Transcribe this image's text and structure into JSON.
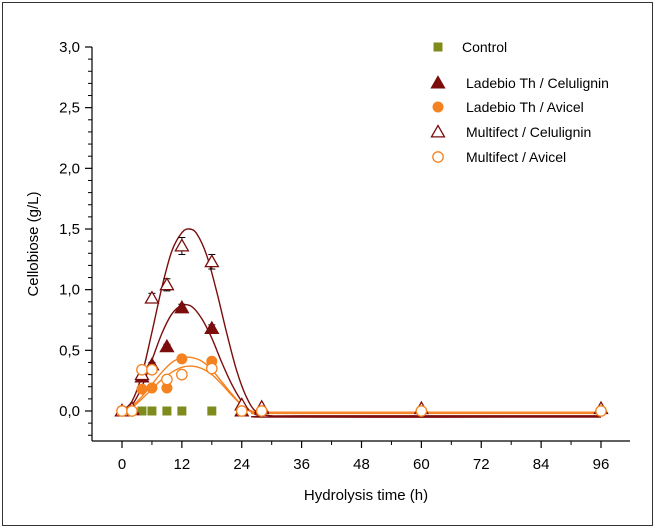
{
  "chart_data": {
    "type": "scatter",
    "title": "",
    "xlabel": "Hydrolysis time (h)",
    "ylabel": "Cellobiose (g/L)",
    "xlim": [
      -5,
      100
    ],
    "ylim": [
      -0.25,
      3.0
    ],
    "xticks": [
      0,
      12,
      24,
      36,
      48,
      60,
      72,
      84,
      96
    ],
    "xtick_labels": [
      "0",
      "12",
      "24",
      "36",
      "48",
      "60",
      "72",
      "84",
      "96"
    ],
    "yticks": [
      0.0,
      0.5,
      1.0,
      1.5,
      2.0,
      2.5,
      3.0
    ],
    "ytick_labels": [
      "0,0",
      "0,5",
      "1,0",
      "1,5",
      "2,0",
      "2,5",
      "3,0"
    ],
    "legend_position": "top-right",
    "grid": false,
    "series": [
      {
        "name": "Control",
        "marker": "square-filled",
        "color": "#7f8c1d",
        "points": [
          {
            "x": 0,
            "y": 0.0
          },
          {
            "x": 4,
            "y": 0.0
          },
          {
            "x": 6,
            "y": 0.0
          },
          {
            "x": 9,
            "y": 0.0
          },
          {
            "x": 12,
            "y": 0.0
          },
          {
            "x": 18,
            "y": 0.0
          }
        ]
      },
      {
        "name": "Ladebio Th / Celulignin",
        "marker": "triangle-filled",
        "color": "#7b0d0d",
        "points": [
          {
            "x": 0,
            "y": 0.0
          },
          {
            "x": 2,
            "y": 0.01
          },
          {
            "x": 4,
            "y": 0.28
          },
          {
            "x": 6,
            "y": 0.38
          },
          {
            "x": 9,
            "y": 0.53
          },
          {
            "x": 12,
            "y": 0.85
          },
          {
            "x": 18,
            "y": 0.68
          },
          {
            "x": 24,
            "y": 0.0
          },
          {
            "x": 28,
            "y": 0.02
          }
        ],
        "errors": [
          0,
          0,
          0.02,
          0.02,
          0.02,
          0.03,
          0.03,
          0,
          0
        ],
        "fit": [
          {
            "x": 0,
            "y": 0.0
          },
          {
            "x": 2,
            "y": 0.05
          },
          {
            "x": 4,
            "y": 0.2
          },
          {
            "x": 6,
            "y": 0.42
          },
          {
            "x": 8,
            "y": 0.64
          },
          {
            "x": 10,
            "y": 0.8
          },
          {
            "x": 12,
            "y": 0.87
          },
          {
            "x": 14,
            "y": 0.86
          },
          {
            "x": 16,
            "y": 0.76
          },
          {
            "x": 18,
            "y": 0.6
          },
          {
            "x": 20,
            "y": 0.4
          },
          {
            "x": 22,
            "y": 0.22
          },
          {
            "x": 24,
            "y": 0.08
          },
          {
            "x": 26,
            "y": -0.01
          },
          {
            "x": 28,
            "y": -0.04
          },
          {
            "x": 32,
            "y": -0.05
          },
          {
            "x": 96,
            "y": -0.05
          }
        ]
      },
      {
        "name": "Ladebio Th / Avicel",
        "marker": "circle-filled",
        "color": "#f58220",
        "points": [
          {
            "x": 0,
            "y": 0.0
          },
          {
            "x": 2,
            "y": 0.0
          },
          {
            "x": 4,
            "y": 0.18
          },
          {
            "x": 6,
            "y": 0.19
          },
          {
            "x": 9,
            "y": 0.19
          },
          {
            "x": 12,
            "y": 0.43
          },
          {
            "x": 18,
            "y": 0.41
          },
          {
            "x": 24,
            "y": 0.0
          },
          {
            "x": 28,
            "y": 0.0
          }
        ],
        "errors": [
          0,
          0,
          0.02,
          0.02,
          0.02,
          0.02,
          0.03,
          0,
          0
        ],
        "fit": [
          {
            "x": 0,
            "y": 0.0
          },
          {
            "x": 2,
            "y": 0.04
          },
          {
            "x": 4,
            "y": 0.12
          },
          {
            "x": 6,
            "y": 0.22
          },
          {
            "x": 8,
            "y": 0.32
          },
          {
            "x": 10,
            "y": 0.4
          },
          {
            "x": 12,
            "y": 0.44
          },
          {
            "x": 14,
            "y": 0.44
          },
          {
            "x": 16,
            "y": 0.41
          },
          {
            "x": 18,
            "y": 0.34
          },
          {
            "x": 20,
            "y": 0.24
          },
          {
            "x": 22,
            "y": 0.14
          },
          {
            "x": 24,
            "y": 0.05
          },
          {
            "x": 26,
            "y": -0.01
          },
          {
            "x": 28,
            "y": -0.02
          },
          {
            "x": 32,
            "y": -0.02
          },
          {
            "x": 96,
            "y": -0.02
          }
        ]
      },
      {
        "name": "Multifect / Celulignin",
        "marker": "triangle-open",
        "color": "#7b0d0d",
        "points": [
          {
            "x": 0,
            "y": 0.0
          },
          {
            "x": 2,
            "y": 0.02
          },
          {
            "x": 4,
            "y": 0.3
          },
          {
            "x": 6,
            "y": 0.93
          },
          {
            "x": 9,
            "y": 1.04
          },
          {
            "x": 12,
            "y": 1.36
          },
          {
            "x": 18,
            "y": 1.23
          },
          {
            "x": 24,
            "y": 0.05
          },
          {
            "x": 28,
            "y": 0.03
          },
          {
            "x": 60,
            "y": 0.02
          },
          {
            "x": 96,
            "y": 0.02
          }
        ],
        "errors": [
          0,
          0,
          0.02,
          0.04,
          0.05,
          0.07,
          0.06,
          0,
          0,
          0,
          0
        ],
        "fit": [
          {
            "x": 0,
            "y": 0.0
          },
          {
            "x": 2,
            "y": 0.08
          },
          {
            "x": 4,
            "y": 0.3
          },
          {
            "x": 6,
            "y": 0.65
          },
          {
            "x": 8,
            "y": 1.02
          },
          {
            "x": 10,
            "y": 1.32
          },
          {
            "x": 12,
            "y": 1.47
          },
          {
            "x": 13.5,
            "y": 1.5
          },
          {
            "x": 15,
            "y": 1.46
          },
          {
            "x": 17,
            "y": 1.28
          },
          {
            "x": 19,
            "y": 0.98
          },
          {
            "x": 21,
            "y": 0.64
          },
          {
            "x": 23,
            "y": 0.33
          },
          {
            "x": 25,
            "y": 0.11
          },
          {
            "x": 27,
            "y": -0.01
          },
          {
            "x": 30,
            "y": -0.04
          },
          {
            "x": 36,
            "y": -0.04
          },
          {
            "x": 96,
            "y": -0.04
          }
        ]
      },
      {
        "name": "Multifect / Avicel",
        "marker": "circle-open",
        "color": "#f58220",
        "points": [
          {
            "x": 0,
            "y": 0.0
          },
          {
            "x": 2,
            "y": 0.0
          },
          {
            "x": 4,
            "y": 0.34
          },
          {
            "x": 6,
            "y": 0.34
          },
          {
            "x": 9,
            "y": 0.26
          },
          {
            "x": 12,
            "y": 0.3
          },
          {
            "x": 18,
            "y": 0.35
          },
          {
            "x": 24,
            "y": 0.0
          },
          {
            "x": 28,
            "y": 0.0
          },
          {
            "x": 60,
            "y": 0.0
          },
          {
            "x": 96,
            "y": 0.0
          }
        ],
        "errors": [
          0,
          0,
          0.02,
          0.02,
          0.02,
          0.02,
          0.03,
          0,
          0,
          0,
          0
        ],
        "fit": [
          {
            "x": 0,
            "y": 0.0
          },
          {
            "x": 2,
            "y": 0.03
          },
          {
            "x": 4,
            "y": 0.1
          },
          {
            "x": 6,
            "y": 0.18
          },
          {
            "x": 8,
            "y": 0.26
          },
          {
            "x": 10,
            "y": 0.32
          },
          {
            "x": 12,
            "y": 0.36
          },
          {
            "x": 14,
            "y": 0.37
          },
          {
            "x": 16,
            "y": 0.35
          },
          {
            "x": 18,
            "y": 0.3
          },
          {
            "x": 20,
            "y": 0.22
          },
          {
            "x": 22,
            "y": 0.13
          },
          {
            "x": 24,
            "y": 0.05
          },
          {
            "x": 26,
            "y": 0.0
          },
          {
            "x": 28,
            "y": -0.01
          },
          {
            "x": 32,
            "y": -0.01
          },
          {
            "x": 96,
            "y": -0.01
          }
        ]
      }
    ]
  }
}
